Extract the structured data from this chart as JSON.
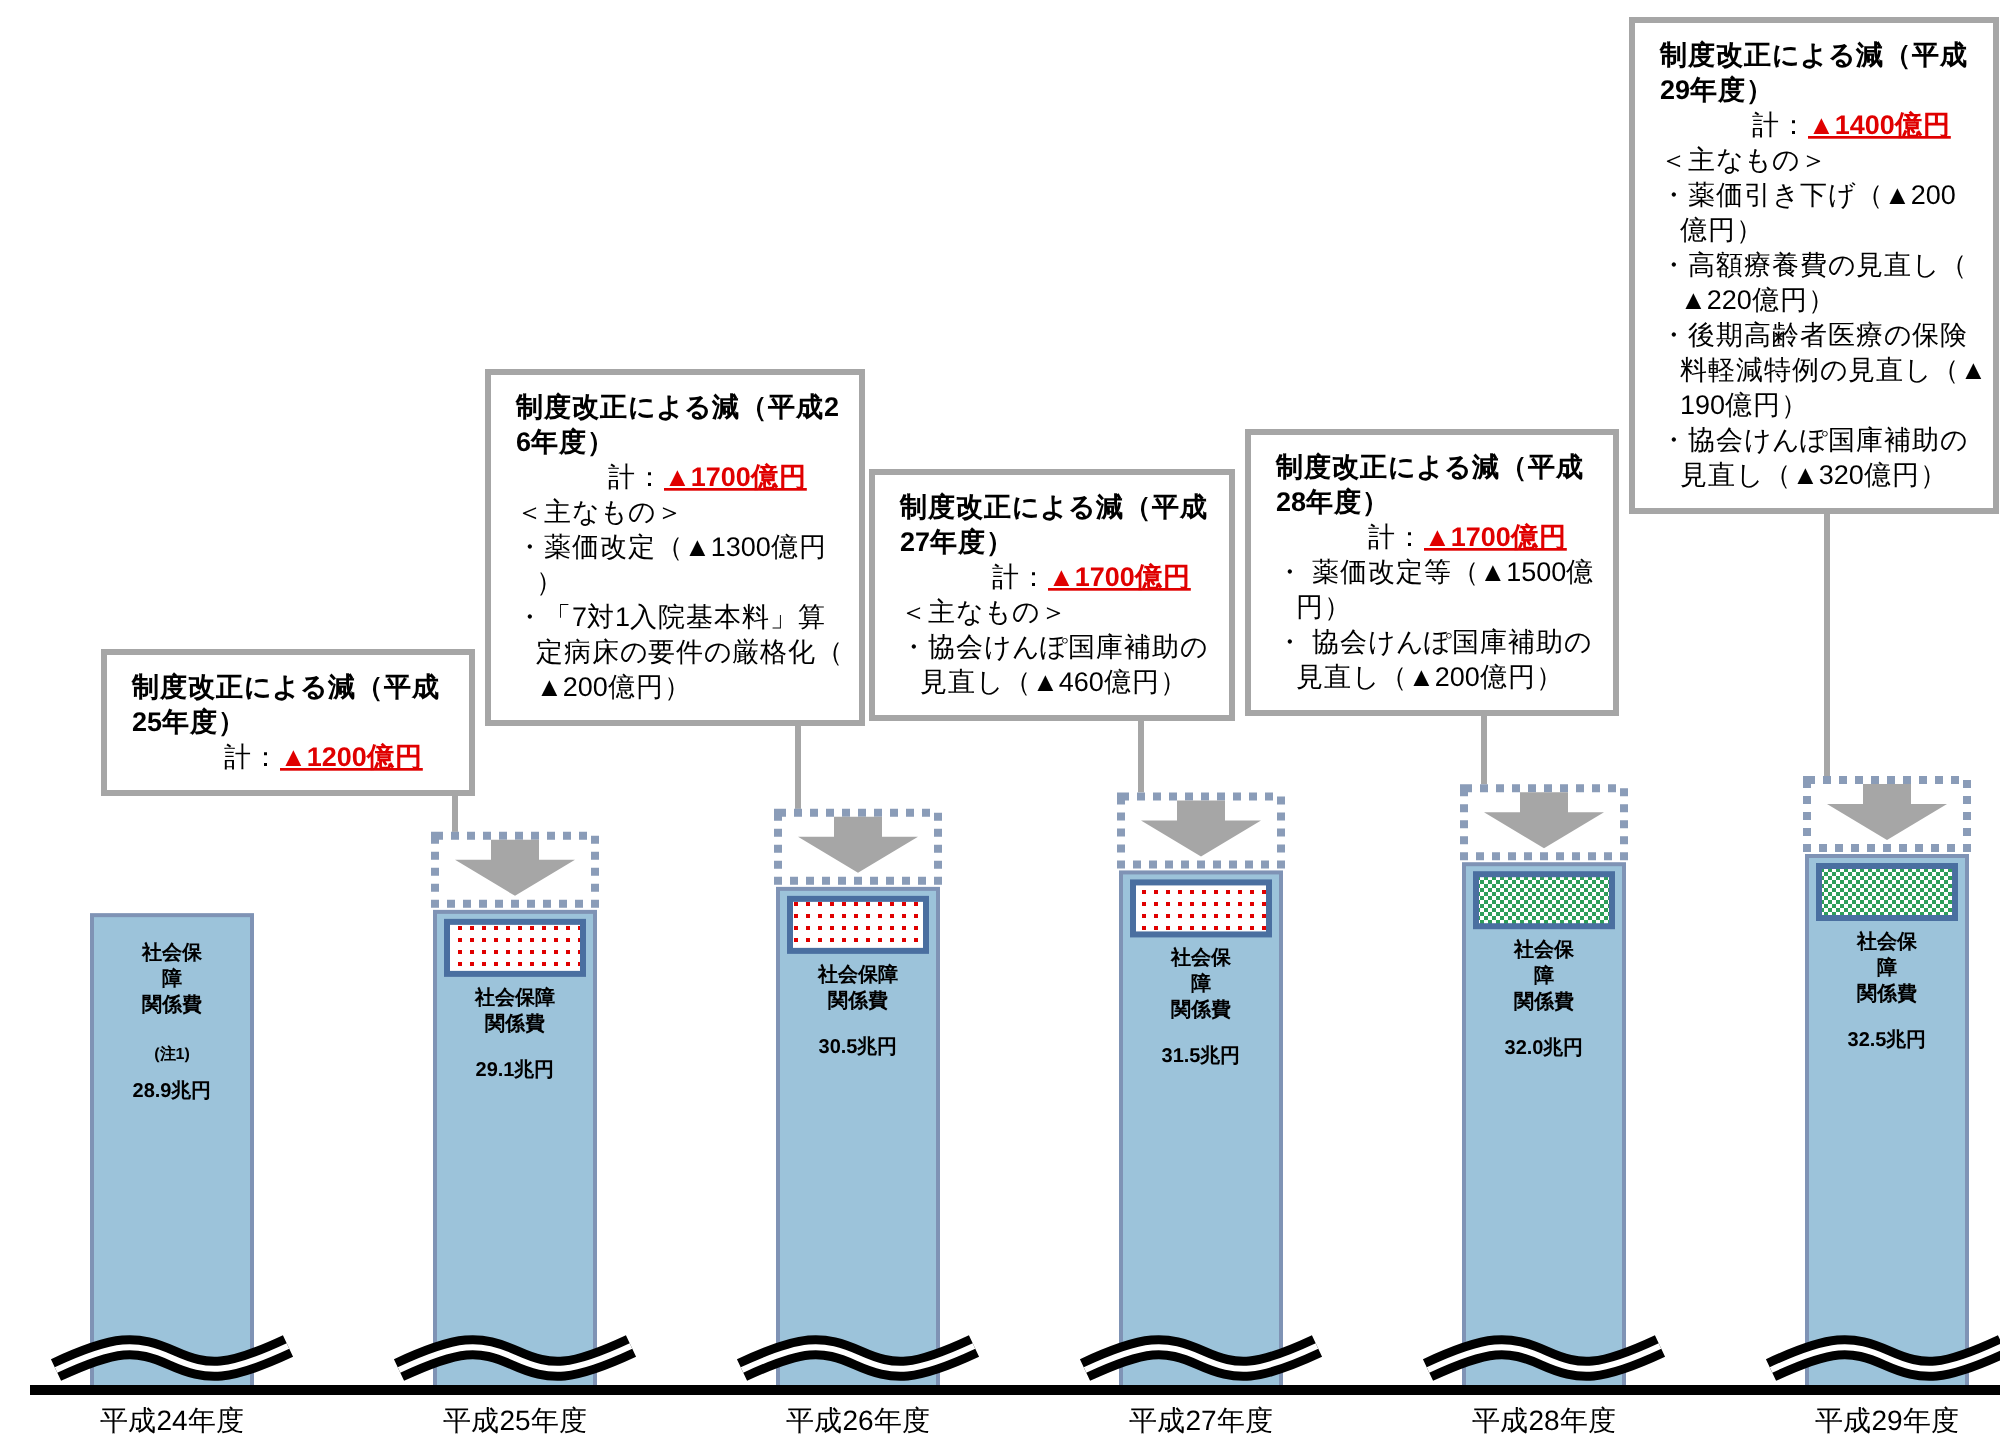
{
  "chart_data": {
    "type": "bar",
    "categories": [
      "平成24年度",
      "平成25年度",
      "平成26年度",
      "平成27年度",
      "平成28年度",
      "平成29年度"
    ],
    "series": [
      {
        "name": "社会保障関係費",
        "color": "#9cc3da",
        "values": [
          28.9,
          29.1,
          30.5,
          31.5,
          32.0,
          32.5
        ],
        "value_labels": [
          "28.9兆円",
          "29.1兆円",
          "30.5兆円",
          "31.5兆円",
          "32.0兆円",
          "32.5兆円"
        ]
      }
    ],
    "tick_labels": "x",
    "annotations": [
      "制度改正による減（平成25年度）",
      "計：▲1200億円",
      "制度改正による減（平成26年度）",
      "計：▲1700億円",
      "＜主なもの＞",
      "・薬価改定（▲1300億円）",
      "・「7対1入院基本料」算定病床の要件の厳格化（▲200億円）",
      "制度改正による減（平成27年度）",
      "計：▲1700億円",
      "＜主なもの＞",
      "・協会けんぽ国庫補助の見直し（▲460億円）",
      "制度改正による減（平成28年度）",
      "計：▲1700億円",
      "・ 薬価改定等（▲1500億円）",
      "・ 協会けんぽ国庫補助の見直し（▲200億円）",
      "制度改正による減（平成29年度）",
      "計：▲1400億円",
      "＜主なもの＞",
      "・薬価引き下げ（▲200億円）",
      "・高額療養費の見直し（▲220億円）",
      "・後期高齢者医療の保険料軽減特例の見直し（▲190億円）",
      "・協会けんぽ国庫補助の見直し（▲320億円）",
      "(注1)"
    ]
  }
}
